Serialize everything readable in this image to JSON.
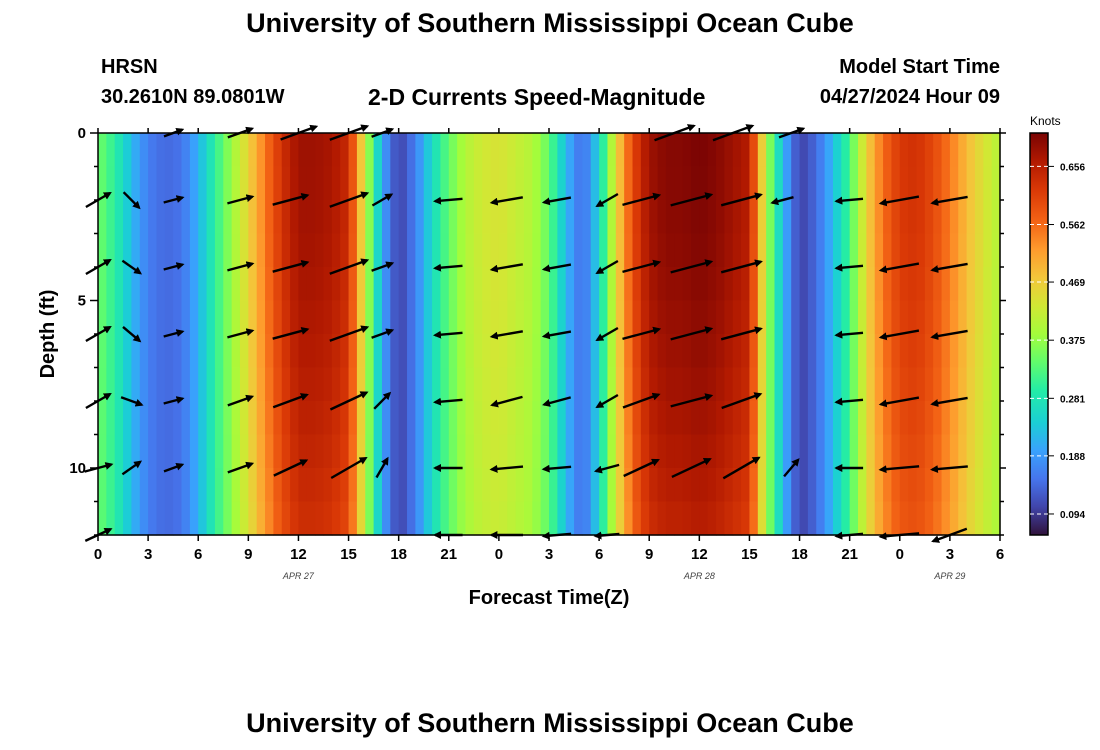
{
  "header": {
    "title": "University of Southern Mississippi Ocean Cube",
    "footer_title": "University of Southern Mississippi Ocean Cube",
    "station": "HRSN",
    "coords": "30.2610N  89.0801W",
    "plot_title": "2-D Currents Speed-Magnitude",
    "model_start_label": "Model Start Time",
    "model_start_value": "04/27/2024 Hour 09"
  },
  "chart_data": {
    "type": "heatmap",
    "title": "2-D Currents Speed-Magnitude",
    "xlabel": "Forecast Time(Z)",
    "ylabel": "Depth (ft)",
    "x_unit": "hours since 2024-04-27 00Z",
    "xlim": [
      0,
      54
    ],
    "ylim": [
      12,
      0
    ],
    "x_tick_labels": [
      "0",
      "3",
      "6",
      "9",
      "12",
      "15",
      "18",
      "21",
      "0",
      "3",
      "6",
      "9",
      "12",
      "15",
      "18",
      "21",
      "0",
      "3",
      "6"
    ],
    "y_ticks": [
      0,
      5,
      10
    ],
    "date_labels": [
      {
        "label": "APR 27",
        "hour": 12
      },
      {
        "label": "APR 28",
        "hour": 36
      },
      {
        "label": "APR 29",
        "hour": 51
      }
    ],
    "colorbar": {
      "unit": "Knots",
      "min": 0.06,
      "max": 0.71,
      "ticks": [
        "0.656",
        "0.562",
        "0.469",
        "0.375",
        "0.281",
        "0.188",
        "0.094"
      ]
    },
    "speed_profile_hours": [
      0,
      1,
      2,
      3,
      4,
      5,
      6,
      7,
      8,
      9,
      10,
      11,
      12,
      13,
      14,
      15,
      16,
      17,
      18,
      19,
      20,
      21,
      22,
      23,
      24,
      25,
      26,
      27,
      28,
      29,
      30,
      31,
      32,
      33,
      34,
      35,
      36,
      37,
      38,
      39,
      40,
      41,
      42,
      43,
      44,
      45,
      46,
      47,
      48,
      49,
      50,
      51,
      52,
      53,
      54
    ],
    "speed_profile_knots": [
      0.35,
      0.3,
      0.22,
      0.16,
      0.14,
      0.15,
      0.21,
      0.3,
      0.38,
      0.46,
      0.55,
      0.63,
      0.68,
      0.68,
      0.67,
      0.64,
      0.42,
      0.2,
      0.1,
      0.16,
      0.26,
      0.34,
      0.4,
      0.43,
      0.44,
      0.42,
      0.4,
      0.34,
      0.22,
      0.14,
      0.25,
      0.45,
      0.6,
      0.68,
      0.7,
      0.7,
      0.71,
      0.7,
      0.68,
      0.66,
      0.4,
      0.22,
      0.1,
      0.14,
      0.22,
      0.32,
      0.46,
      0.56,
      0.62,
      0.63,
      0.6,
      0.55,
      0.49,
      0.44,
      0.4
    ],
    "vectors": [
      {
        "depth": 0,
        "arrows": [
          {
            "hour": 4.5,
            "speed": 0.14,
            "dir": 70
          },
          {
            "hour": 8.5,
            "speed": 0.3,
            "dir": 70
          },
          {
            "hour": 12,
            "speed": 0.6,
            "dir": 70
          },
          {
            "hour": 15,
            "speed": 0.65,
            "dir": 70
          },
          {
            "hour": 17,
            "speed": 0.2,
            "dir": 70
          },
          {
            "hour": 41.5,
            "speed": 0.3,
            "dir": 70
          },
          {
            "hour": 34.5,
            "speed": 0.7,
            "dir": 70
          },
          {
            "hour": 38,
            "speed": 0.7,
            "dir": 70
          }
        ]
      },
      {
        "depth": 2,
        "arrows": [
          {
            "hour": 0,
            "speed": 0.35,
            "dir": 60
          },
          {
            "hour": 2,
            "speed": 0.2,
            "dir": 135
          },
          {
            "hour": 4.5,
            "speed": 0.14,
            "dir": 75
          },
          {
            "hour": 8.5,
            "speed": 0.3,
            "dir": 75
          },
          {
            "hour": 11.5,
            "speed": 0.55,
            "dir": 75
          },
          {
            "hour": 15,
            "speed": 0.65,
            "dir": 70
          },
          {
            "hour": 17,
            "speed": 0.2,
            "dir": 60
          },
          {
            "hour": 21,
            "speed": 0.34,
            "dir": 265
          },
          {
            "hour": 24.5,
            "speed": 0.44,
            "dir": 260
          },
          {
            "hour": 27.5,
            "speed": 0.34,
            "dir": 260
          },
          {
            "hour": 30.5,
            "speed": 0.25,
            "dir": 240
          },
          {
            "hour": 32.5,
            "speed": 0.6,
            "dir": 75
          },
          {
            "hour": 35.5,
            "speed": 0.7,
            "dir": 75
          },
          {
            "hour": 38.5,
            "speed": 0.68,
            "dir": 75
          },
          {
            "hour": 41,
            "speed": 0.2,
            "dir": 255
          },
          {
            "hour": 45,
            "speed": 0.32,
            "dir": 265
          },
          {
            "hour": 48,
            "speed": 0.62,
            "dir": 260
          },
          {
            "hour": 51,
            "speed": 0.55,
            "dir": 260
          }
        ]
      },
      {
        "depth": 4,
        "arrows": [
          {
            "hour": 0,
            "speed": 0.35,
            "dir": 60
          },
          {
            "hour": 2,
            "speed": 0.2,
            "dir": 125
          },
          {
            "hour": 4.5,
            "speed": 0.14,
            "dir": 75
          },
          {
            "hour": 8.5,
            "speed": 0.3,
            "dir": 75
          },
          {
            "hour": 11.5,
            "speed": 0.55,
            "dir": 75
          },
          {
            "hour": 15,
            "speed": 0.65,
            "dir": 70
          },
          {
            "hour": 17,
            "speed": 0.2,
            "dir": 70
          },
          {
            "hour": 21,
            "speed": 0.34,
            "dir": 265
          },
          {
            "hour": 24.5,
            "speed": 0.44,
            "dir": 260
          },
          {
            "hour": 27.5,
            "speed": 0.34,
            "dir": 260
          },
          {
            "hour": 30.5,
            "speed": 0.25,
            "dir": 240
          },
          {
            "hour": 32.5,
            "speed": 0.6,
            "dir": 75
          },
          {
            "hour": 35.5,
            "speed": 0.7,
            "dir": 75
          },
          {
            "hour": 38.5,
            "speed": 0.68,
            "dir": 75
          },
          {
            "hour": 45,
            "speed": 0.32,
            "dir": 265
          },
          {
            "hour": 48,
            "speed": 0.62,
            "dir": 260
          },
          {
            "hour": 51,
            "speed": 0.55,
            "dir": 260
          }
        ]
      },
      {
        "depth": 6,
        "arrows": [
          {
            "hour": 0,
            "speed": 0.35,
            "dir": 60
          },
          {
            "hour": 2,
            "speed": 0.2,
            "dir": 130
          },
          {
            "hour": 4.5,
            "speed": 0.14,
            "dir": 75
          },
          {
            "hour": 8.5,
            "speed": 0.3,
            "dir": 75
          },
          {
            "hour": 11.5,
            "speed": 0.55,
            "dir": 75
          },
          {
            "hour": 15,
            "speed": 0.65,
            "dir": 70
          },
          {
            "hour": 17,
            "speed": 0.2,
            "dir": 70
          },
          {
            "hour": 21,
            "speed": 0.34,
            "dir": 265
          },
          {
            "hour": 24.5,
            "speed": 0.44,
            "dir": 260
          },
          {
            "hour": 27.5,
            "speed": 0.34,
            "dir": 260
          },
          {
            "hour": 30.5,
            "speed": 0.25,
            "dir": 240
          },
          {
            "hour": 32.5,
            "speed": 0.6,
            "dir": 75
          },
          {
            "hour": 35.5,
            "speed": 0.7,
            "dir": 75
          },
          {
            "hour": 38.5,
            "speed": 0.68,
            "dir": 75
          },
          {
            "hour": 45,
            "speed": 0.32,
            "dir": 265
          },
          {
            "hour": 48,
            "speed": 0.62,
            "dir": 260
          },
          {
            "hour": 51,
            "speed": 0.55,
            "dir": 260
          }
        ]
      },
      {
        "depth": 8,
        "arrows": [
          {
            "hour": 0,
            "speed": 0.35,
            "dir": 60
          },
          {
            "hour": 2,
            "speed": 0.2,
            "dir": 110
          },
          {
            "hour": 4.5,
            "speed": 0.14,
            "dir": 75
          },
          {
            "hour": 8.5,
            "speed": 0.3,
            "dir": 70
          },
          {
            "hour": 11.5,
            "speed": 0.55,
            "dir": 70
          },
          {
            "hour": 15,
            "speed": 0.65,
            "dir": 65
          },
          {
            "hour": 17,
            "speed": 0.2,
            "dir": 45
          },
          {
            "hour": 21,
            "speed": 0.34,
            "dir": 265
          },
          {
            "hour": 24.5,
            "speed": 0.44,
            "dir": 255
          },
          {
            "hour": 27.5,
            "speed": 0.34,
            "dir": 255
          },
          {
            "hour": 30.5,
            "speed": 0.25,
            "dir": 240
          },
          {
            "hour": 32.5,
            "speed": 0.6,
            "dir": 70
          },
          {
            "hour": 35.5,
            "speed": 0.7,
            "dir": 75
          },
          {
            "hour": 38.5,
            "speed": 0.68,
            "dir": 70
          },
          {
            "hour": 45,
            "speed": 0.32,
            "dir": 265
          },
          {
            "hour": 48,
            "speed": 0.62,
            "dir": 260
          },
          {
            "hour": 51,
            "speed": 0.55,
            "dir": 260
          }
        ]
      },
      {
        "depth": 10,
        "arrows": [
          {
            "hour": 0,
            "speed": 0.35,
            "dir": 75
          },
          {
            "hour": 2,
            "speed": 0.2,
            "dir": 55
          },
          {
            "hour": 4.5,
            "speed": 0.14,
            "dir": 70
          },
          {
            "hour": 8.5,
            "speed": 0.3,
            "dir": 70
          },
          {
            "hour": 11.5,
            "speed": 0.55,
            "dir": 65
          },
          {
            "hour": 15,
            "speed": 0.65,
            "dir": 60
          },
          {
            "hour": 17,
            "speed": 0.2,
            "dir": 30
          },
          {
            "hour": 21,
            "speed": 0.34,
            "dir": 270
          },
          {
            "hour": 24.5,
            "speed": 0.44,
            "dir": 265
          },
          {
            "hour": 27.5,
            "speed": 0.34,
            "dir": 265
          },
          {
            "hour": 30.5,
            "speed": 0.25,
            "dir": 255
          },
          {
            "hour": 32.5,
            "speed": 0.6,
            "dir": 65
          },
          {
            "hour": 35.5,
            "speed": 0.7,
            "dir": 65
          },
          {
            "hour": 38.5,
            "speed": 0.68,
            "dir": 60
          },
          {
            "hour": 41.5,
            "speed": 0.2,
            "dir": 40
          },
          {
            "hour": 45,
            "speed": 0.32,
            "dir": 270
          },
          {
            "hour": 48,
            "speed": 0.62,
            "dir": 265
          },
          {
            "hour": 51,
            "speed": 0.55,
            "dir": 265
          }
        ]
      },
      {
        "depth": 12,
        "arrows": [
          {
            "hour": 0,
            "speed": 0.35,
            "dir": 65
          },
          {
            "hour": 21,
            "speed": 0.34,
            "dir": 270
          },
          {
            "hour": 24.5,
            "speed": 0.44,
            "dir": 270
          },
          {
            "hour": 27.5,
            "speed": 0.34,
            "dir": 265
          },
          {
            "hour": 30.5,
            "speed": 0.25,
            "dir": 265
          },
          {
            "hour": 45,
            "speed": 0.32,
            "dir": 265
          },
          {
            "hour": 48,
            "speed": 0.62,
            "dir": 265
          },
          {
            "hour": 51,
            "speed": 0.55,
            "dir": 250
          }
        ]
      }
    ]
  }
}
